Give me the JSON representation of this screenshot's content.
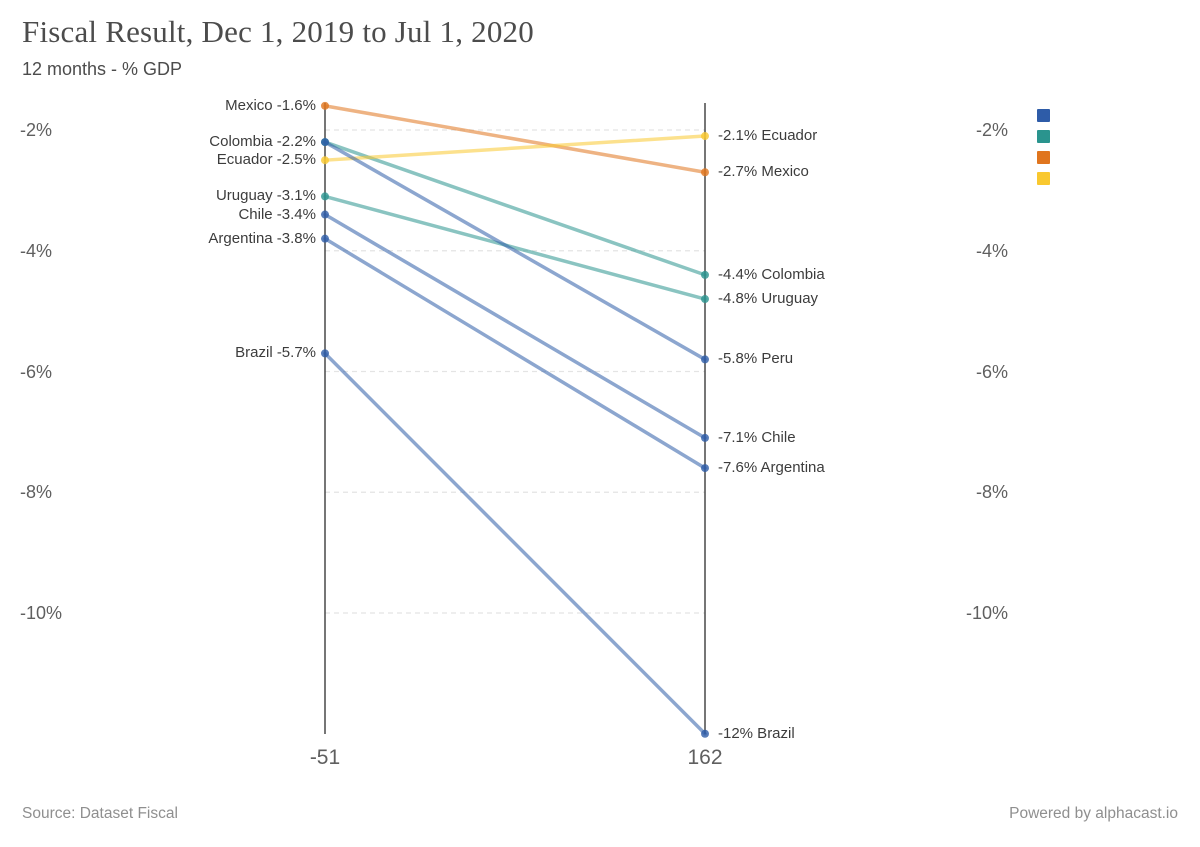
{
  "header": {
    "title": "Fiscal Result, Dec 1, 2019 to Jul 1, 2020",
    "subtitle": "12 months - % GDP"
  },
  "footer": {
    "source": "Source: Dataset Fiscal",
    "powered": "Powered by alphacast.io"
  },
  "colors": {
    "blue": "#2e5ca8",
    "teal": "#2a948e",
    "orange": "#e0751e",
    "yellow": "#f9c82f",
    "axis": "#3c3c3c",
    "grid": "#e4e4e4"
  },
  "chart_data": {
    "type": "line",
    "subtype": "slope",
    "title": "Fiscal Result, Dec 1, 2019 to Jul 1, 2020",
    "xlabel": "",
    "ylabel": "12 months - % GDP",
    "x_tick_labels": [
      "-51",
      "162"
    ],
    "yticks": [
      -2,
      -4,
      -6,
      -8,
      -10
    ],
    "ytick_labels": [
      "-2%",
      "-4%",
      "-6%",
      "-8%",
      "-10%"
    ],
    "ylim": [
      -12.1,
      -1.55
    ],
    "grid": "horizontal dashed, between the two vertical axes only",
    "legend_position": "top-right",
    "legend_colors": [
      "#2e5ca8",
      "#2a948e",
      "#e0751e",
      "#f9c82f"
    ],
    "series": [
      {
        "name": "Uruguay",
        "color": "#2a948e",
        "values": [
          -3.1,
          -4.8
        ],
        "left_label": "Uruguay -3.1%",
        "right_label": "-4.8% Uruguay"
      },
      {
        "name": "Colombia",
        "color": "#2a948e",
        "values": [
          -2.2,
          -4.4
        ],
        "left_label": "Colombia -2.2%",
        "right_label": "-4.4% Colombia"
      },
      {
        "name": "Mexico",
        "color": "#e0751e",
        "values": [
          -1.6,
          -2.7
        ],
        "left_label": "Mexico -1.6%",
        "right_label": "-2.7% Mexico"
      },
      {
        "name": "Ecuador",
        "color": "#f9c82f",
        "values": [
          -2.5,
          -2.1
        ],
        "left_label": "Ecuador -2.5%",
        "right_label": "-2.1% Ecuador"
      },
      {
        "name": "Brazil",
        "color": "#2e5ca8",
        "values": [
          -5.7,
          -12
        ],
        "left_label": "Brazil -5.7%",
        "right_label": "-12% Brazil"
      },
      {
        "name": "Argentina",
        "color": "#2e5ca8",
        "values": [
          -3.8,
          -7.6
        ],
        "left_label": "Argentina -3.8%",
        "right_label": "-7.6% Argentina"
      },
      {
        "name": "Chile",
        "color": "#2e5ca8",
        "values": [
          -3.4,
          -7.1
        ],
        "left_label": "Chile -3.4%",
        "right_label": "-7.1% Chile"
      },
      {
        "name": "Peru",
        "color": "#2e5ca8",
        "values": [
          -2.2,
          -5.8
        ],
        "left_label": "",
        "right_label": "-5.8% Peru"
      }
    ]
  }
}
